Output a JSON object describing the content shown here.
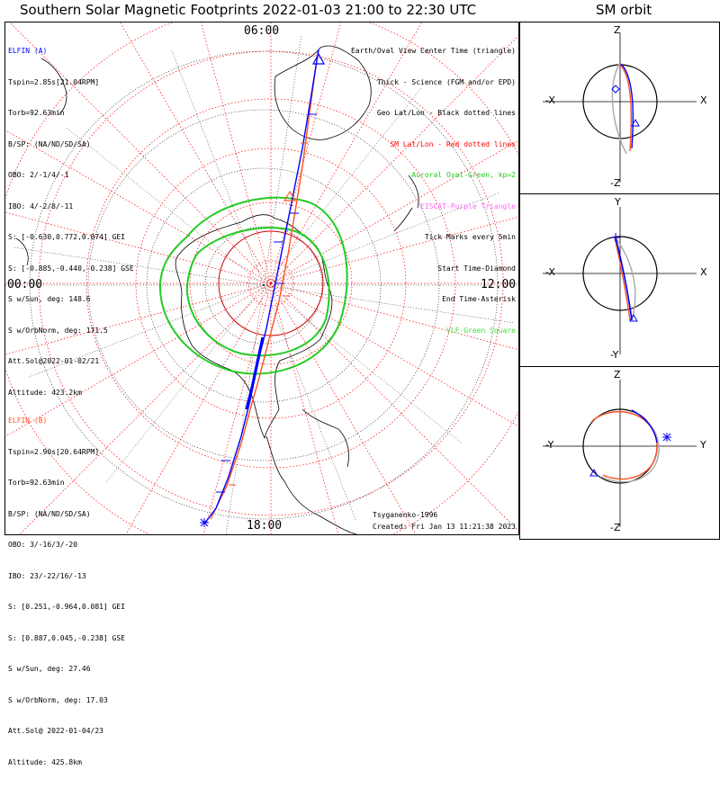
{
  "title": "Southern Solar Magnetic Footprints 2022-01-03 21:00 to 22:30 UTC",
  "sm_title": "SM orbit",
  "elfin_a": {
    "name": "ELFIN (A)",
    "lines": [
      "Tspin=2.85s[21.04RPM]",
      "Torb=92.63min",
      "B/SP: (NA/ND/SD/SA)",
      "OBO: 2/-1/4/-1",
      "IBO: 4/-2/8/-11",
      "S: [-0.630,0.772,0.074] GEI",
      "S: [-0.885,-0.440,-0.238] GSE",
      "S w/Sun, deg: 148.6",
      "S w/OrbNorm, deg: 171.5",
      "Att.Sol@2022-01-02/21",
      "Altitude: 423.2km"
    ],
    "color": "#0000ff"
  },
  "elfin_b": {
    "name": "ELFIN (B)",
    "lines": [
      "Tspin=2.90s[20.64RPM]",
      "Torb=92.63min",
      "B/SP: (NA/ND/SD/SA)",
      "OBO: 3/-16/3/-20",
      "IBO: 23/-22/16/-13",
      "S: [0.251,-0.964,0.081] GEI",
      "S: [0.887,0.045,-0.238] GSE",
      "S w/Sun, deg: 27.46",
      "S w/OrbNorm, deg: 17.03",
      "Att.Sol@ 2022-01-04/23",
      "Altitude: 425.8km"
    ],
    "color": "#ff5020"
  },
  "legend": [
    {
      "text": "Earth/Oval View Center Time (triangle)",
      "color": "#000000"
    },
    {
      "text": "Thick - Science (FGM and/or EPD)",
      "color": "#000000"
    },
    {
      "text": "Geo Lat/Lon - Black dotted lines",
      "color": "#000000"
    },
    {
      "text": "SM Lat/Lon - Red dotted lines",
      "color": "#ff0000"
    },
    {
      "text": "Auroral Oval-Green, kp=2",
      "color": "#22cc22"
    },
    {
      "text": "EISCAT-Purple Triangle",
      "color": "#ff66ff"
    },
    {
      "text": "Tick Marks every 5min",
      "color": "#000000"
    },
    {
      "text": "Start Time-Diamond",
      "color": "#000000"
    },
    {
      "text": "End Time-Asterisk",
      "color": "#000000"
    },
    {
      "text": "VLF-Green Square",
      "color": "#44dd44"
    }
  ],
  "mlt_labels": {
    "top": "06:00",
    "left": "00:00",
    "right": "12:00",
    "bottom": "18:00"
  },
  "credit": {
    "author": "Tsyganenko-1996",
    "created": "Created: Fri Jan 13 11:21:38 2023"
  },
  "panels": [
    {
      "top": "Z",
      "bottom": "-Z",
      "left": "-X",
      "right": "X"
    },
    {
      "top": "Y",
      "bottom": "-Y",
      "left": "-X",
      "right": "X"
    },
    {
      "top": "Z",
      "bottom": "-Z",
      "left": "-Y",
      "right": "Y"
    }
  ]
}
